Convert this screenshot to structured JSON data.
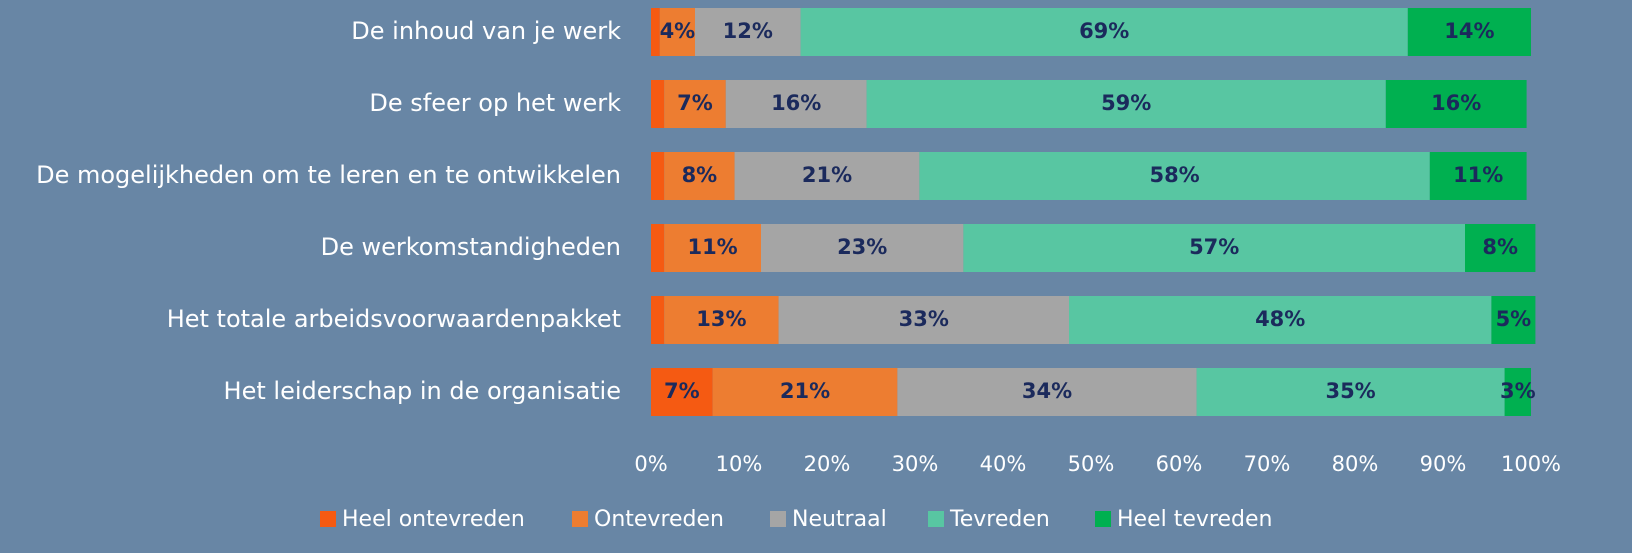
{
  "chart_data": {
    "type": "stacked-barh",
    "categories": [
      "De inhoud van je werk",
      "De sfeer op het werk",
      "De mogelijkheden om te leren en te ontwikkelen",
      "De werkomstandigheden",
      "Het totale arbeidsvoorwaardenpakket",
      "Het leiderschap in de organisatie"
    ],
    "series": [
      {
        "name": "Heel ontevreden",
        "color": "#f55a12",
        "values": [
          1,
          1.5,
          1.5,
          1.5,
          1.5,
          7
        ],
        "value_labels": [
          null,
          null,
          null,
          null,
          null,
          "7%"
        ]
      },
      {
        "name": "Ontevreden",
        "color": "#ed7d31",
        "values": [
          4,
          7,
          8,
          11,
          13,
          21
        ],
        "value_labels": [
          "4%",
          "7%",
          "8%",
          "11%",
          "13%",
          "21%"
        ]
      },
      {
        "name": "Neutraal",
        "color": "#a5a5a5",
        "values": [
          12,
          16,
          21,
          23,
          33,
          34
        ],
        "value_labels": [
          "12%",
          "16%",
          "21%",
          "23%",
          "33%",
          "34%"
        ]
      },
      {
        "name": "Tevreden",
        "color": "#58c6a2",
        "values": [
          69,
          59,
          58,
          57,
          48,
          35
        ],
        "value_labels": [
          "69%",
          "59%",
          "58%",
          "57%",
          "48%",
          "35%"
        ]
      },
      {
        "name": "Heel tevreden",
        "color": "#00b050",
        "values": [
          14,
          16,
          11,
          8,
          5,
          3
        ],
        "value_labels": [
          "14%",
          "16%",
          "11%",
          "8%",
          "5%",
          "3%"
        ]
      }
    ],
    "xlim": [
      0,
      100
    ],
    "xticks": [
      {
        "value": 0,
        "label": "0%"
      },
      {
        "value": 10,
        "label": "10%"
      },
      {
        "value": 20,
        "label": "20%"
      },
      {
        "value": 30,
        "label": "30%"
      },
      {
        "value": 40,
        "label": "40%"
      },
      {
        "value": 50,
        "label": "50%"
      },
      {
        "value": 60,
        "label": "60%"
      },
      {
        "value": 70,
        "label": "70%"
      },
      {
        "value": 80,
        "label": "80%"
      },
      {
        "value": 90,
        "label": "90%"
      },
      {
        "value": 100,
        "label": "100%"
      }
    ],
    "legend": "bottom"
  }
}
